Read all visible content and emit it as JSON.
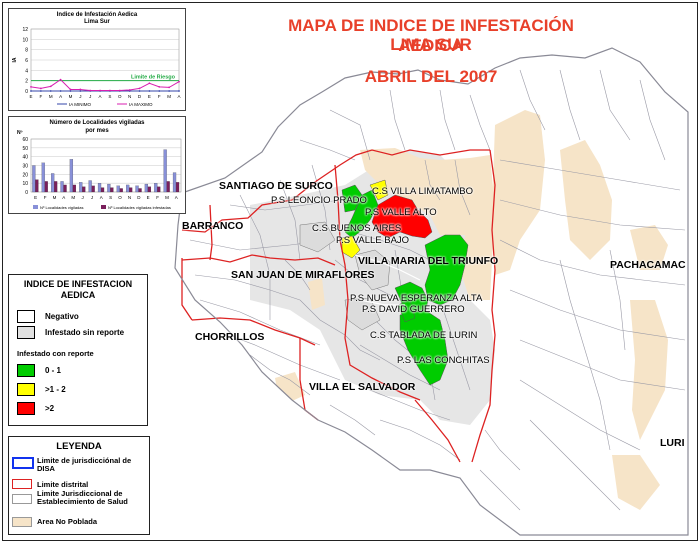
{
  "title": {
    "line1": "MAPA DE INDICE DE INFESTACIÓN AEDICA",
    "line2": "LIMA SUR",
    "date": "ABRIL DEL 2007"
  },
  "districts": {
    "surco": "SANTIAGO DE SURCO",
    "barranco": "BARRANCO",
    "sjm": "SAN JUAN DE MIRAFLORES",
    "chorrillos": "CHORRILLOS",
    "ves": "VILLA EL SALVADOR",
    "vmt": "VILLA MARIA DEL TRIUNFO",
    "pachacamac": "PACHACAMAC",
    "lurin": "LURI"
  },
  "facilities": {
    "leoncio": "P.S LEONCIO PRADO",
    "limatambo": "C.S VILLA  LIMATAMBO",
    "valle_alto": "P.S VALLE ALTO",
    "buenos_aires": "C.S BUENOS AIRES",
    "valle_bajo": "P.S VALLE BAJO",
    "nueva_esperanza": "P.S NUEVA ESPERANZA ALTA",
    "david_guerrero": "P.S DAVID GUERRERO",
    "tablada": "C.S TABLADA DE LURIN",
    "conchitas": "P.S LAS CONCHITAS"
  },
  "chart1": {
    "title_line1": "Indice de Infestación Aedica",
    "title_line2": "Lima Sur",
    "ylabel": "IA",
    "yticks": [
      "0",
      "2",
      "4",
      "6",
      "8",
      "10",
      "12"
    ],
    "months": [
      "E",
      "F",
      "M",
      "A",
      "M",
      "J",
      "J",
      "A",
      "S",
      "O",
      "N",
      "D",
      "E",
      "F",
      "M",
      "A"
    ],
    "risk_label": "Limite de Riesgo",
    "legend_min": "IA MINIMO",
    "legend_max": "IA MAXIMO"
  },
  "chart2": {
    "title_line1": "Número de Localidades vigiladas",
    "title_line2": "por mes",
    "ylabel": "Nº",
    "yticks": [
      "0",
      "10",
      "20",
      "30",
      "40",
      "50",
      "60"
    ],
    "months": [
      "E",
      "F",
      "M",
      "A",
      "M",
      "J",
      "J",
      "A",
      "S",
      "O",
      "N",
      "D",
      "E",
      "F",
      "M",
      "A"
    ],
    "legend_a": "Nº Localidades vigiladas",
    "legend_b": "Nº Localidades vigiladas infestadas"
  },
  "chart_data": [
    {
      "type": "line",
      "title": "Indice de Infestación Aedica",
      "subtitle": "Lima Sur",
      "ylabel": "IA",
      "ylim": [
        0,
        12
      ],
      "x": [
        "E",
        "F",
        "M",
        "A",
        "M",
        "J",
        "J",
        "A",
        "S",
        "O",
        "N",
        "D",
        "E",
        "F",
        "M",
        "A"
      ],
      "series": [
        {
          "name": "IA MINIMO",
          "values": [
            0,
            0,
            0,
            0,
            0,
            0,
            0,
            0,
            0,
            0,
            0,
            0,
            0,
            0,
            0,
            0
          ]
        },
        {
          "name": "IA MAXIMO",
          "values": [
            0.8,
            0.5,
            0.9,
            2.2,
            0.3,
            0.3,
            0.1,
            0.1,
            0.1,
            0.1,
            0.2,
            0.5,
            1.5,
            0.8,
            0.7,
            1.8
          ]
        }
      ],
      "reference_line": {
        "label": "Limite de Riesgo",
        "value": 2
      },
      "colors": {
        "min": "#3344aa",
        "max": "#d81fb0",
        "risk": "#22aa44"
      }
    },
    {
      "type": "bar",
      "title": "Número de Localidades vigiladas",
      "subtitle": "por mes",
      "ylabel": "Nº",
      "ylim": [
        0,
        60
      ],
      "categories": [
        "E",
        "F",
        "M",
        "A",
        "M",
        "J",
        "J",
        "A",
        "S",
        "O",
        "N",
        "D",
        "E",
        "F",
        "M",
        "A"
      ],
      "series": [
        {
          "name": "Nº Localidades vigiladas",
          "values": [
            30,
            33,
            21,
            12,
            37,
            11,
            13,
            10,
            9,
            7,
            8,
            7,
            9,
            10,
            48,
            22
          ]
        },
        {
          "name": "Nº Localidades vigiladas infestadas",
          "values": [
            14,
            12,
            12,
            8,
            8,
            6,
            7,
            5,
            5,
            4,
            5,
            4,
            6,
            6,
            12,
            11
          ]
        }
      ],
      "colors": {
        "a": "#8890d8",
        "b": "#7a1f5c"
      }
    }
  ],
  "legend_index": {
    "title": "INDICE DE INFESTACION AEDICA",
    "negativo": "Negativo",
    "sin_reporte": "Infestado sin reporte",
    "con_reporte": "Infestado con reporte",
    "g": "0 - 1",
    "y": ">1 - 2",
    "r": ">2"
  },
  "legend_main": {
    "title": "LEYENDA",
    "disa": "Limite de jurisdicciónal de DISA",
    "distrital": "Limite distrital",
    "establecimiento": "Limite Jurisdiccional de Establecimiento de Salud",
    "no_poblada": "Area No Poblada"
  },
  "colors": {
    "green": "#00cc00",
    "yellow": "#ffff00",
    "red": "#ff0000",
    "gray": "#e1e1e1",
    "tan": "#f6e4c8",
    "district": "#dd2222",
    "disa": "#1133ee"
  }
}
